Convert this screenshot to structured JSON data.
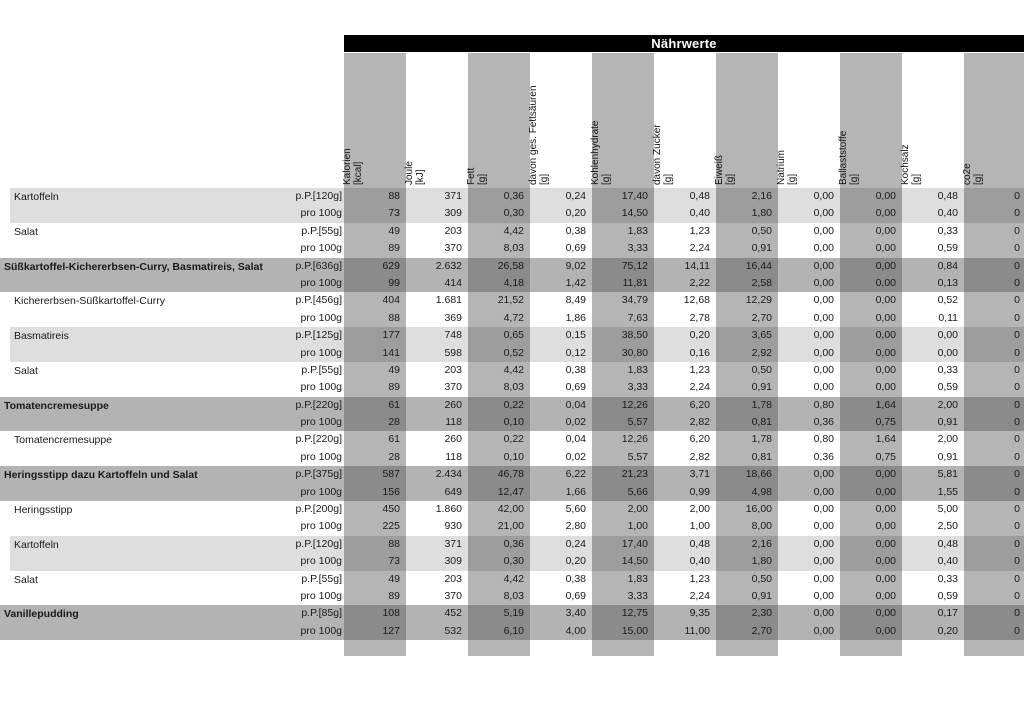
{
  "title": "Nährwerte",
  "colors": {
    "title_bar_bg": "#000000",
    "title_text": "#ffffff",
    "column_stripe_gray": "#b5b5b5",
    "row_light": "#dedede",
    "row_light_on_gray": "#9d9d9d",
    "row_bold": "#b3b3b3",
    "row_bold_on_gray": "#8b8b8b",
    "text": "#1a1a1a"
  },
  "columns": [
    {
      "name": "Kalorien",
      "unit": "[kcal]"
    },
    {
      "name": "Joule",
      "unit": "[kJ]"
    },
    {
      "name": "Fett",
      "unit": "[g]"
    },
    {
      "name": "davon ges. Fettsäuren",
      "unit": "[g]"
    },
    {
      "name": "Kohlenhydrate",
      "unit": "[g]"
    },
    {
      "name": "davon Zucker",
      "unit": "[g]"
    },
    {
      "name": "Eiweiß",
      "unit": "[g]"
    },
    {
      "name": "Natrium",
      "unit": "[g]"
    },
    {
      "name": "Ballaststoffe",
      "unit": "[g]"
    },
    {
      "name": "Kochsalz",
      "unit": "[g]"
    },
    {
      "name": "co2e",
      "unit": "[g]"
    }
  ],
  "per_100g_label": "pro 100g",
  "items": [
    {
      "label": "Kartoffeln",
      "style": "light",
      "portion_label": "p.P.[120g]",
      "per_portion": [
        "88",
        "371",
        "0,36",
        "0,24",
        "17,40",
        "0,48",
        "2,16",
        "0,00",
        "0,00",
        "0,48",
        "0"
      ],
      "per_100g": [
        "73",
        "309",
        "0,30",
        "0,20",
        "14,50",
        "0,40",
        "1,80",
        "0,00",
        "0,00",
        "0,40",
        "0"
      ]
    },
    {
      "label": "Salat",
      "style": "white",
      "portion_label": "p.P.[55g]",
      "per_portion": [
        "49",
        "203",
        "4,42",
        "0,38",
        "1,83",
        "1,23",
        "0,50",
        "0,00",
        "0,00",
        "0,33",
        "0"
      ],
      "per_100g": [
        "89",
        "370",
        "8,03",
        "0,69",
        "3,33",
        "2,24",
        "0,91",
        "0,00",
        "0,00",
        "0,59",
        "0"
      ]
    },
    {
      "label": "Süßkartoffel-Kichererbsen-Curry, Basmatireis, Salat",
      "style": "bold",
      "portion_label": "p.P.[636g]",
      "per_portion": [
        "629",
        "2.632",
        "26,58",
        "9,02",
        "75,12",
        "14,11",
        "16,44",
        "0,00",
        "0,00",
        "0,84",
        "0"
      ],
      "per_100g": [
        "99",
        "414",
        "4,18",
        "1,42",
        "11,81",
        "2,22",
        "2,58",
        "0,00",
        "0,00",
        "0,13",
        "0"
      ]
    },
    {
      "label": "Kichererbsen-Süßkartoffel-Curry",
      "style": "white",
      "portion_label": "p.P.[456g]",
      "per_portion": [
        "404",
        "1.681",
        "21,52",
        "8,49",
        "34,79",
        "12,68",
        "12,29",
        "0,00",
        "0,00",
        "0,52",
        "0"
      ],
      "per_100g": [
        "88",
        "369",
        "4,72",
        "1,86",
        "7,63",
        "2,78",
        "2,70",
        "0,00",
        "0,00",
        "0,11",
        "0"
      ]
    },
    {
      "label": "Basmatireis",
      "style": "light",
      "portion_label": "p.P.[125g]",
      "per_portion": [
        "177",
        "748",
        "0,65",
        "0,15",
        "38,50",
        "0,20",
        "3,65",
        "0,00",
        "0,00",
        "0,00",
        "0"
      ],
      "per_100g": [
        "141",
        "598",
        "0,52",
        "0,12",
        "30,80",
        "0,16",
        "2,92",
        "0,00",
        "0,00",
        "0,00",
        "0"
      ]
    },
    {
      "label": "Salat",
      "style": "white",
      "portion_label": "p.P.[55g]",
      "per_portion": [
        "49",
        "203",
        "4,42",
        "0,38",
        "1,83",
        "1,23",
        "0,50",
        "0,00",
        "0,00",
        "0,33",
        "0"
      ],
      "per_100g": [
        "89",
        "370",
        "8,03",
        "0,69",
        "3,33",
        "2,24",
        "0,91",
        "0,00",
        "0,00",
        "0,59",
        "0"
      ]
    },
    {
      "label": "Tomatencremesuppe",
      "style": "bold",
      "portion_label": "p.P.[220g]",
      "per_portion": [
        "61",
        "260",
        "0,22",
        "0,04",
        "12,26",
        "6,20",
        "1,78",
        "0,80",
        "1,64",
        "2,00",
        "0"
      ],
      "per_100g": [
        "28",
        "118",
        "0,10",
        "0,02",
        "5,57",
        "2,82",
        "0,81",
        "0,36",
        "0,75",
        "0,91",
        "0"
      ]
    },
    {
      "label": "Tomatencremesuppe",
      "style": "white",
      "portion_label": "p.P.[220g]",
      "per_portion": [
        "61",
        "260",
        "0,22",
        "0,04",
        "12,26",
        "6,20",
        "1,78",
        "0,80",
        "1,64",
        "2,00",
        "0"
      ],
      "per_100g": [
        "28",
        "118",
        "0,10",
        "0,02",
        "5,57",
        "2,82",
        "0,81",
        "0,36",
        "0,75",
        "0,91",
        "0"
      ]
    },
    {
      "label": "Heringsstipp dazu Kartoffeln und Salat",
      "style": "bold",
      "portion_label": "p.P.[375g]",
      "per_portion": [
        "587",
        "2.434",
        "46,78",
        "6,22",
        "21,23",
        "3,71",
        "18,66",
        "0,00",
        "0,00",
        "5,81",
        "0"
      ],
      "per_100g": [
        "156",
        "649",
        "12,47",
        "1,66",
        "5,66",
        "0,99",
        "4,98",
        "0,00",
        "0,00",
        "1,55",
        "0"
      ]
    },
    {
      "label": "Heringsstipp",
      "style": "white",
      "portion_label": "p.P.[200g]",
      "per_portion": [
        "450",
        "1.860",
        "42,00",
        "5,60",
        "2,00",
        "2,00",
        "16,00",
        "0,00",
        "0,00",
        "5,00",
        "0"
      ],
      "per_100g": [
        "225",
        "930",
        "21,00",
        "2,80",
        "1,00",
        "1,00",
        "8,00",
        "0,00",
        "0,00",
        "2,50",
        "0"
      ]
    },
    {
      "label": "Kartoffeln",
      "style": "light",
      "portion_label": "p.P.[120g]",
      "per_portion": [
        "88",
        "371",
        "0,36",
        "0,24",
        "17,40",
        "0,48",
        "2,16",
        "0,00",
        "0,00",
        "0,48",
        "0"
      ],
      "per_100g": [
        "73",
        "309",
        "0,30",
        "0,20",
        "14,50",
        "0,40",
        "1,80",
        "0,00",
        "0,00",
        "0,40",
        "0"
      ]
    },
    {
      "label": "Salat",
      "style": "white",
      "portion_label": "p.P.[55g]",
      "per_portion": [
        "49",
        "203",
        "4,42",
        "0,38",
        "1,83",
        "1,23",
        "0,50",
        "0,00",
        "0,00",
        "0,33",
        "0"
      ],
      "per_100g": [
        "89",
        "370",
        "8,03",
        "0,69",
        "3,33",
        "2,24",
        "0,91",
        "0,00",
        "0,00",
        "0,59",
        "0"
      ]
    },
    {
      "label": "Vanillepudding",
      "style": "bold",
      "portion_label": "p.P.[85g]",
      "per_portion": [
        "108",
        "452",
        "5,19",
        "3,40",
        "12,75",
        "9,35",
        "2,30",
        "0,00",
        "0,00",
        "0,17",
        "0"
      ],
      "per_100g": [
        "127",
        "532",
        "6,10",
        "4,00",
        "15,00",
        "11,00",
        "2,70",
        "0,00",
        "0,00",
        "0,20",
        "0"
      ]
    }
  ]
}
